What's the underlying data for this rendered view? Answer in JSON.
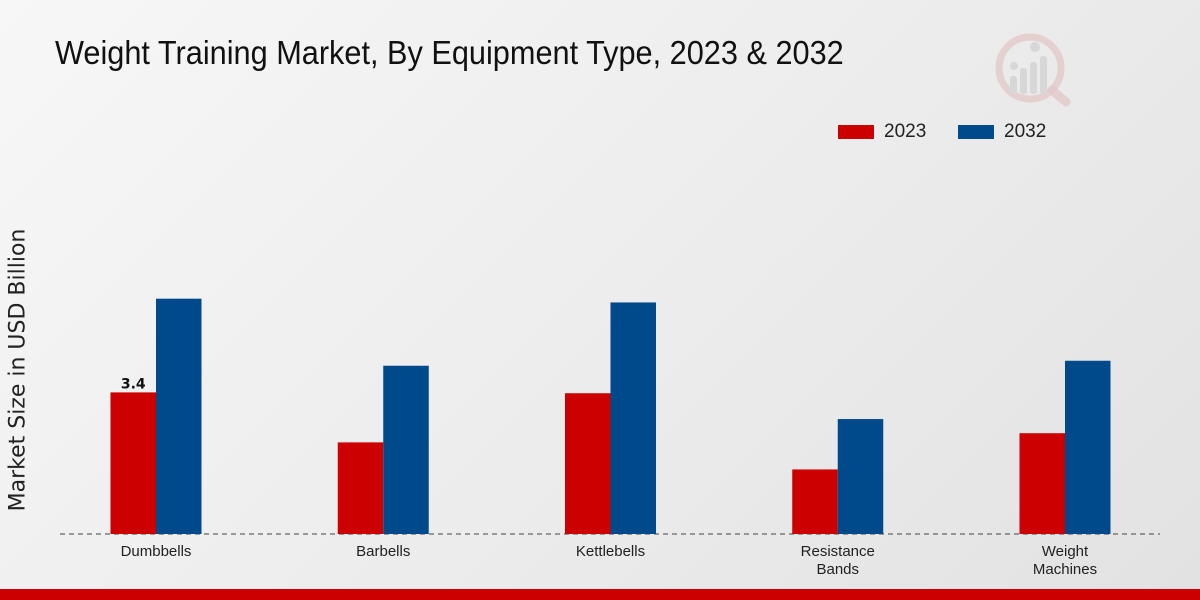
{
  "chart_data": {
    "type": "bar",
    "title": "Weight Training Market, By Equipment Type, 2023 & 2032",
    "ylabel": "Market Size in USD Billion",
    "xlabel": "",
    "categories": [
      "Dumbbells",
      "Barbells",
      "Kettlebells",
      "Resistance Bands",
      "Weight Machines"
    ],
    "series": [
      {
        "name": "2023",
        "color": "#cc0000",
        "values": [
          3.4,
          2.2,
          3.38,
          1.55,
          2.42
        ]
      },
      {
        "name": "2032",
        "color": "#004a8c",
        "values": [
          5.65,
          4.04,
          5.56,
          2.76,
          4.16
        ]
      }
    ],
    "data_labels": [
      {
        "series": 0,
        "category": 0,
        "text": "3.4"
      }
    ],
    "ylim": [
      0,
      8.5
    ],
    "grid": false,
    "legend": "top-right"
  }
}
